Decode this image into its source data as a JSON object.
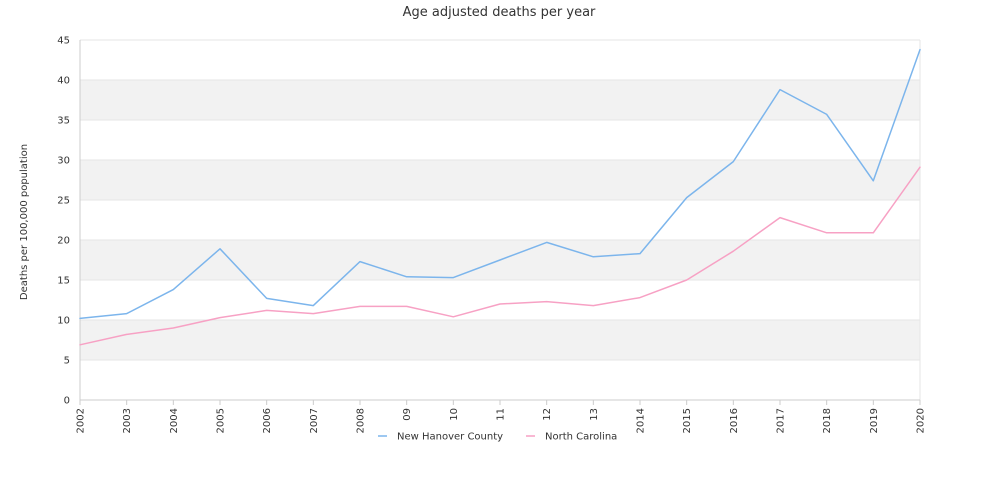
{
  "chart_data": {
    "type": "line",
    "title": "Age adjusted deaths per year",
    "xlabel": "",
    "ylabel": "Deaths per 100,000 population",
    "ylim": [
      0,
      45
    ],
    "yticks": [
      "0",
      "5",
      "10",
      "15",
      "20",
      "25",
      "30",
      "35",
      "40",
      "45"
    ],
    "ytick_values": [
      0,
      5,
      10,
      15,
      20,
      25,
      30,
      35,
      40,
      45
    ],
    "categories": [
      "2002",
      "2003",
      "2004",
      "2005",
      "2006",
      "2007",
      "2008",
      "09",
      "10",
      "11",
      "12",
      "13",
      "2014",
      "2015",
      "2016",
      "2017",
      "2018",
      "2019",
      "2020"
    ],
    "legend_position": "bottom",
    "grid": "horizontal alternating bands",
    "series": [
      {
        "name": "New Hanover County",
        "color": "#7cb5ec",
        "values": [
          10.2,
          10.8,
          13.8,
          18.9,
          12.7,
          11.8,
          17.3,
          15.4,
          15.3,
          17.5,
          19.7,
          17.9,
          18.3,
          25.3,
          29.8,
          38.8,
          35.7,
          27.4,
          43.8
        ]
      },
      {
        "name": "North Carolina",
        "color": "#f7a1c4",
        "values": [
          6.9,
          8.2,
          9.0,
          10.3,
          11.2,
          10.8,
          11.7,
          11.7,
          10.4,
          12.0,
          12.3,
          11.8,
          12.8,
          15.0,
          18.6,
          22.8,
          20.9,
          20.9,
          29.1
        ]
      }
    ]
  }
}
